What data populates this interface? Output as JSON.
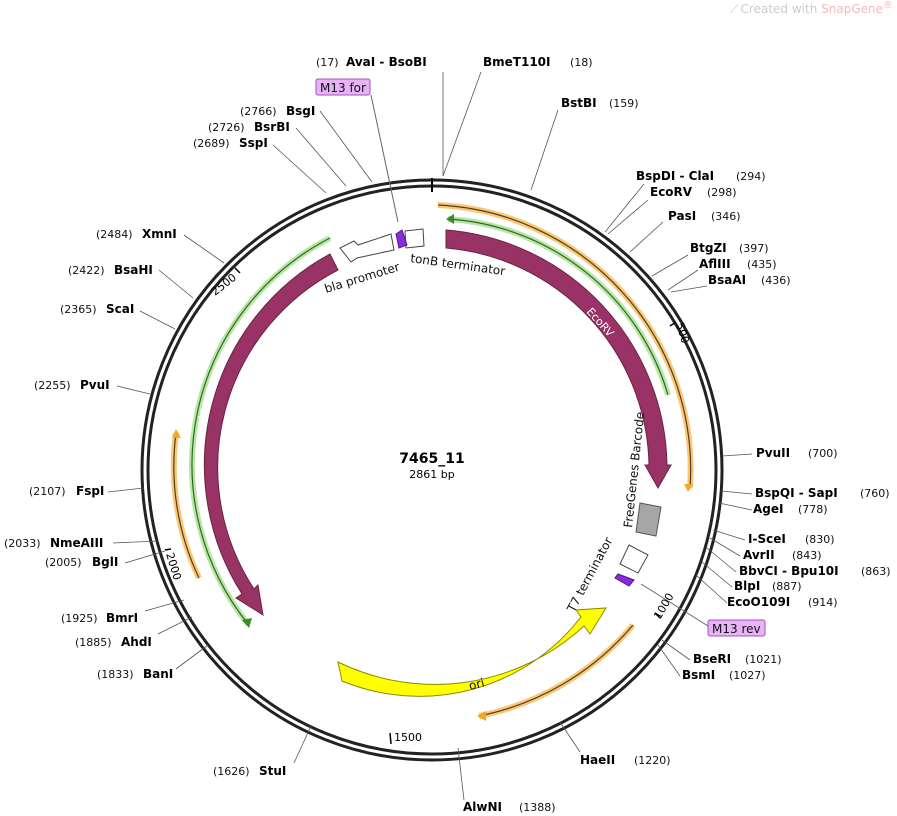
{
  "plasmid": {
    "name": "7465_11",
    "length_label": "2861 bp",
    "length": 2861
  },
  "brand": {
    "prefix": "Created with",
    "name": "SnapGene",
    "mark": "®"
  },
  "ruler_ticks": [
    {
      "pos": 500,
      "label": "500"
    },
    {
      "pos": 1000,
      "label": "1000"
    },
    {
      "pos": 1500,
      "label": "1500"
    },
    {
      "pos": 2000,
      "label": "2000"
    },
    {
      "pos": 2500,
      "label": "2500"
    }
  ],
  "sites": [
    {
      "text": "AvaI  - BsoBI",
      "pos_label": "(17)",
      "pos": 17
    },
    {
      "text": "BmeT110I",
      "pos_label": "(18)",
      "pos": 18
    },
    {
      "text": "BstBI",
      "pos_label": "(159)",
      "pos": 159
    },
    {
      "text": "BspDI  - ClaI",
      "pos_label": "(294)",
      "pos": 294
    },
    {
      "text": "EcoRV",
      "pos_label": "(298)",
      "pos": 298
    },
    {
      "text": "PasI",
      "pos_label": "(346)",
      "pos": 346
    },
    {
      "text": "BtgZI",
      "pos_label": "(397)",
      "pos": 397
    },
    {
      "text": "AflIII",
      "pos_label": "(435)",
      "pos": 435
    },
    {
      "text": "BsaAI",
      "pos_label": "(436)",
      "pos": 436
    },
    {
      "text": "PvuII",
      "pos_label": "(700)",
      "pos": 700
    },
    {
      "text": "BspQI  - SapI",
      "pos_label": "(760)",
      "pos": 760
    },
    {
      "text": "AgeI",
      "pos_label": "(778)",
      "pos": 778
    },
    {
      "text": "I-SceI",
      "pos_label": "(830)",
      "pos": 830
    },
    {
      "text": "AvrII",
      "pos_label": "(843)",
      "pos": 843
    },
    {
      "text": "BbvCI  - Bpu10I",
      "pos_label": "(863)",
      "pos": 863
    },
    {
      "text": "BlpI",
      "pos_label": "(887)",
      "pos": 887
    },
    {
      "text": "EcoO109I",
      "pos_label": "(914)",
      "pos": 914
    },
    {
      "text": "BseRI",
      "pos_label": "(1021)",
      "pos": 1021
    },
    {
      "text": "BsmI",
      "pos_label": "(1027)",
      "pos": 1027
    },
    {
      "text": "HaeII",
      "pos_label": "(1220)",
      "pos": 1220
    },
    {
      "text": "AlwNI",
      "pos_label": "(1388)",
      "pos": 1388
    },
    {
      "text": "StuI",
      "pos_label": "(1626)",
      "pos": 1626
    },
    {
      "text": "BanI",
      "pos_label": "(1833)",
      "pos": 1833
    },
    {
      "text": "AhdI",
      "pos_label": "(1885)",
      "pos": 1885
    },
    {
      "text": "BmrI",
      "pos_label": "(1925)",
      "pos": 1925
    },
    {
      "text": "BglI",
      "pos_label": "(2005)",
      "pos": 2005
    },
    {
      "text": "NmeAIII",
      "pos_label": "(2033)",
      "pos": 2033
    },
    {
      "text": "FspI",
      "pos_label": "(2107)",
      "pos": 2107
    },
    {
      "text": "PvuI",
      "pos_label": "(2255)",
      "pos": 2255
    },
    {
      "text": "ScaI",
      "pos_label": "(2365)",
      "pos": 2365
    },
    {
      "text": "BsaHI",
      "pos_label": "(2422)",
      "pos": 2422
    },
    {
      "text": "XmnI",
      "pos_label": "(2484)",
      "pos": 2484
    },
    {
      "text": "SspI",
      "pos_label": "(2689)",
      "pos": 2689
    },
    {
      "text": "BsrBI",
      "pos_label": "(2726)",
      "pos": 2726
    },
    {
      "text": "BsgI",
      "pos_label": "(2766)",
      "pos": 2766
    }
  ],
  "features": [
    {
      "label": "tonB terminator",
      "color": "#ffffff"
    },
    {
      "label": "EcoRV",
      "color": "#993366"
    },
    {
      "label": "FreeGenes Barcode",
      "color": "#a6a6a6"
    },
    {
      "label": "T7 terminator",
      "color": "#ffffff"
    },
    {
      "label": "ori",
      "color": "#ffff00"
    },
    {
      "label": "bla",
      "color": "#993366"
    },
    {
      "label": "bla promoter",
      "color": "#ffffff"
    }
  ],
  "primers": [
    {
      "label": "M13 for",
      "color": "#e8b3f5"
    },
    {
      "label": "M13 rev",
      "color": "#e8b3f5"
    }
  ],
  "colors": {
    "backbone": "#222222",
    "orf_orange": "#f5a623",
    "orf_green": "#5cb85c",
    "primer_site": "#8a2be2"
  }
}
